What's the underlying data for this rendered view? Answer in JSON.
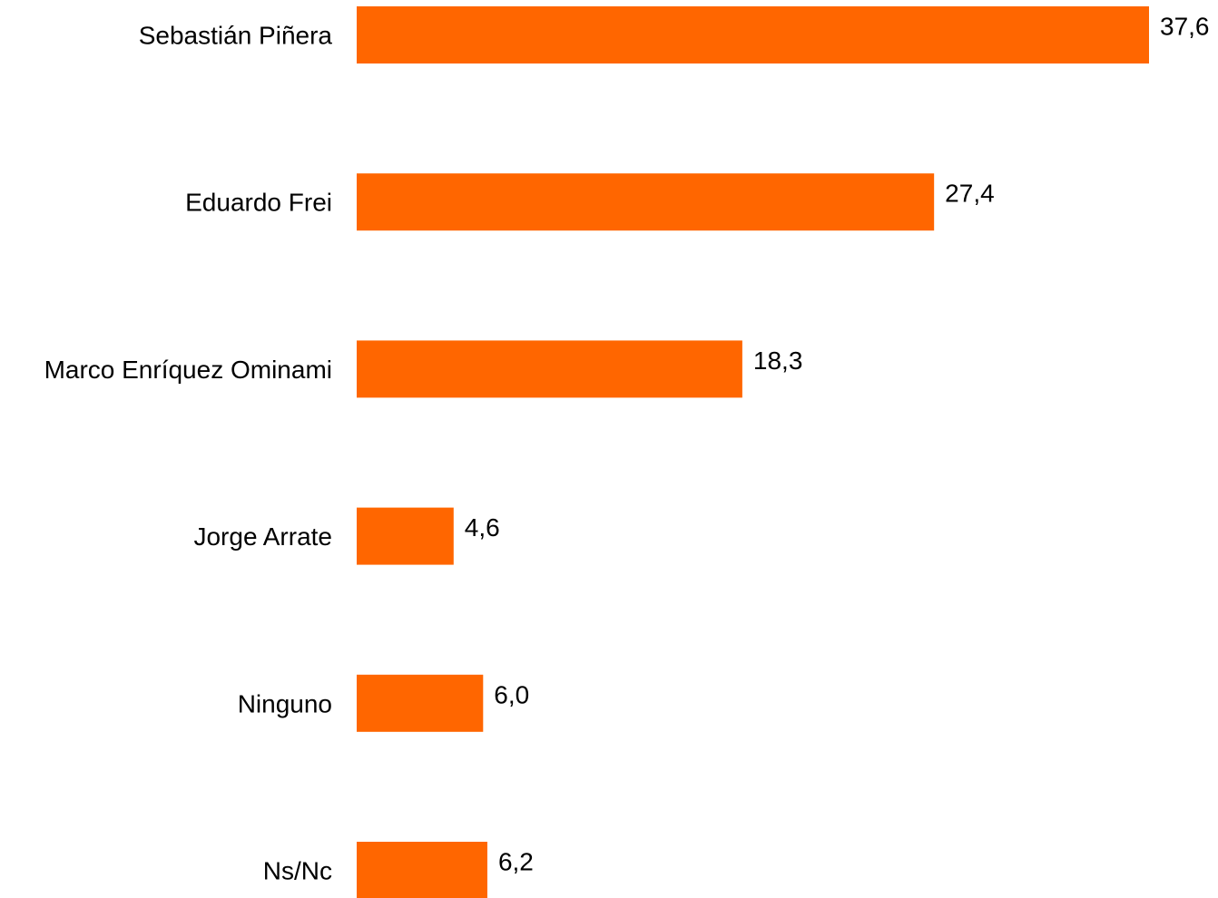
{
  "chart_data": {
    "type": "bar",
    "orientation": "horizontal",
    "categories": [
      "Sebastián Piñera",
      "Eduardo Frei",
      "Marco Enríquez Ominami",
      "Jorge Arrate",
      "Ninguno",
      "Ns/Nc"
    ],
    "values": [
      37.6,
      27.4,
      18.3,
      4.6,
      6.0,
      6.2
    ],
    "value_labels": [
      "37,6",
      "27,4",
      "18,3",
      "4,6",
      "6,0",
      "6,2"
    ],
    "xlim": [
      0,
      37.6
    ],
    "title": "",
    "xlabel": "",
    "ylabel": "",
    "grid": false,
    "legend": "none",
    "bar_color": "#FF6600"
  }
}
